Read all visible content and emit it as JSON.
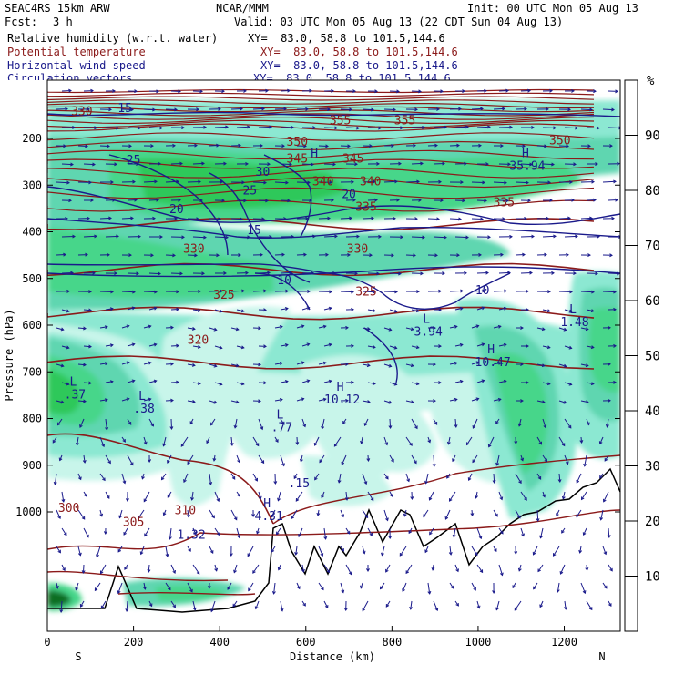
{
  "header": {
    "model": "SEAC4RS 15km ARW",
    "org": "NCAR/MMM",
    "init": "Init: 00 UTC Mon 05 Aug 13",
    "fcst_label": "Fcst:",
    "fcst_value": "3 h",
    "valid": "Valid: 03 UTC Mon 05 Aug 13 (22 CDT Sun 04 Aug 13)"
  },
  "fields": [
    {
      "label": "Relative humidity (w.r.t. water)",
      "xy": "XY=  83.0, 58.8 to 101.5,144.6",
      "color": "#000000"
    },
    {
      "label": "Potential temperature",
      "xy": "XY=  83.0, 58.8 to 101.5,144.6",
      "color": "#8b1a1a"
    },
    {
      "label": "Horizontal wind speed",
      "xy": "XY=  83.0, 58.8 to 101.5,144.6",
      "color": "#1a1a8b"
    },
    {
      "label": "Circulation vectors",
      "xy": "XY=  83.0, 58.8 to 101.5,144.6",
      "color": "#1a1a8b"
    }
  ],
  "colorbar": {
    "unit": "%",
    "ticks": [
      "10",
      "20",
      "30",
      "40",
      "50",
      "60",
      "70",
      "80",
      "90"
    ],
    "colors": [
      "#ffffff",
      "#ffffff",
      "#ffffff",
      "#c8f5ea",
      "#8ce8d2",
      "#5ed6b0",
      "#46d68a",
      "#2fc85a",
      "#1fa03c",
      "#0d6e23"
    ]
  },
  "chart_data": {
    "type": "heatmap",
    "xlabel": "Distance (km)",
    "ylabel": "Pressure (hPa)",
    "xlim": [
      0,
      1330
    ],
    "ylim": [
      1050,
      100
    ],
    "x_ticks": [
      "0",
      "200",
      "400",
      "600",
      "800",
      "1000",
      "1200"
    ],
    "y_ticks": [
      "200",
      "300",
      "400",
      "500",
      "600",
      "700",
      "800",
      "900",
      "1000"
    ],
    "x_end_labels": {
      "left": "S",
      "right": "N"
    },
    "theta_labels": [
      {
        "text": "330",
        "x": 80,
        "p": 150
      },
      {
        "text": "355",
        "x": 680,
        "p": 170
      },
      {
        "text": "355",
        "x": 830,
        "p": 170
      },
      {
        "text": "350",
        "x": 580,
        "p": 216
      },
      {
        "text": "350",
        "x": 1190,
        "p": 213
      },
      {
        "text": "345",
        "x": 580,
        "p": 252
      },
      {
        "text": "345",
        "x": 710,
        "p": 252
      },
      {
        "text": "340",
        "x": 640,
        "p": 300
      },
      {
        "text": "340",
        "x": 750,
        "p": 300
      },
      {
        "text": "335",
        "x": 740,
        "p": 355
      },
      {
        "text": "335",
        "x": 1060,
        "p": 345
      },
      {
        "text": "330",
        "x": 340,
        "p": 445
      },
      {
        "text": "330",
        "x": 720,
        "p": 445
      },
      {
        "text": "325",
        "x": 410,
        "p": 543
      },
      {
        "text": "325",
        "x": 740,
        "p": 537
      },
      {
        "text": "320",
        "x": 350,
        "p": 640
      },
      {
        "text": "310",
        "x": 320,
        "p": 1005
      },
      {
        "text": "305",
        "x": 200,
        "p": 1030
      },
      {
        "text": "300",
        "x": 50,
        "p": 1000
      }
    ],
    "wind_labels": [
      {
        "text": "15",
        "x": 180,
        "p": 143
      },
      {
        "text": "25",
        "x": 200,
        "p": 255
      },
      {
        "text": "30",
        "x": 500,
        "p": 280
      },
      {
        "text": "25",
        "x": 470,
        "p": 320
      },
      {
        "text": "20",
        "x": 300,
        "p": 360
      },
      {
        "text": "20",
        "x": 700,
        "p": 328
      },
      {
        "text": "15",
        "x": 480,
        "p": 405
      },
      {
        "text": "10",
        "x": 550,
        "p": 512
      },
      {
        "text": "10",
        "x": 1010,
        "p": 534
      }
    ],
    "pressure_centers": [
      {
        "type": "H",
        "value": "",
        "x": 620,
        "p": 240
      },
      {
        "type": "H",
        "value": "35.94",
        "x": 1110,
        "p": 240
      },
      {
        "type": "L",
        "value": "3.94",
        "x": 880,
        "p": 595
      },
      {
        "type": "L",
        "value": "1.48",
        "x": 1220,
        "p": 575
      },
      {
        "type": "H",
        "value": "10.47",
        "x": 1030,
        "p": 660
      },
      {
        "type": "H",
        "value": "10.12",
        "x": 680,
        "p": 740
      },
      {
        "type": "L",
        "value": ".37",
        "x": 60,
        "p": 730
      },
      {
        "type": "L",
        "value": ".38",
        "x": 220,
        "p": 760
      },
      {
        "type": "L",
        "value": ".77",
        "x": 540,
        "p": 800
      },
      {
        "type": "",
        "value": ".15",
        "x": 580,
        "p": 920
      },
      {
        "type": "H",
        "value": "4.31",
        "x": 510,
        "p": 990
      },
      {
        "type": "",
        "value": "1.32",
        "x": 330,
        "p": 1030
      }
    ]
  }
}
